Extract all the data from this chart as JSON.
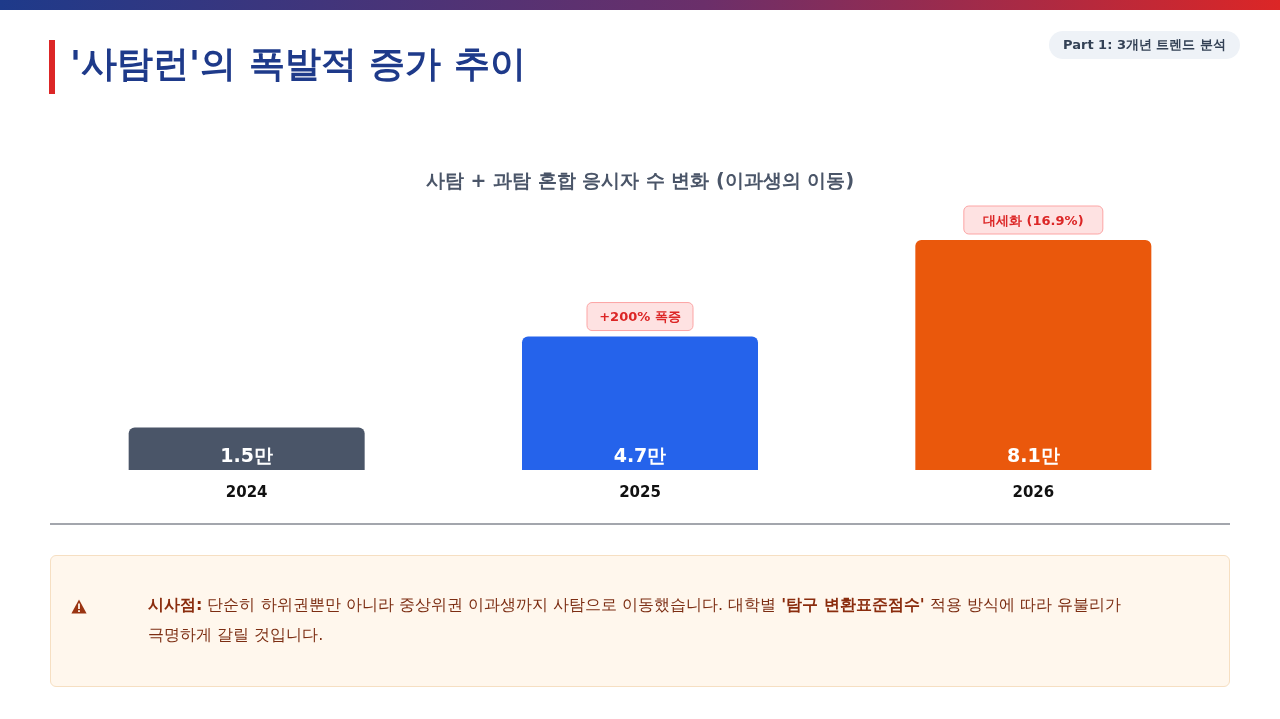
{
  "chart_data": {
    "type": "bar",
    "title": "'사탐런'의 폭발적 증가 추이",
    "subtitle": "사탐 + 과탐 혼합 응시자 수 변화 (이과생의 이동)",
    "categories": [
      "2024",
      "2025",
      "2026"
    ],
    "values": [
      1.5,
      4.7,
      8.1
    ],
    "colors": [
      "#4a5568",
      "#2563eb",
      "#ea580c"
    ],
    "value_labels": [
      "1.5만",
      "4.7만",
      "8.1만"
    ],
    "tick_labels": "x",
    "grid": false,
    "legend": false,
    "annotations": [
      {
        "text": "+200% 폭증",
        "x": "2025",
        "y": 4.7
      },
      {
        "text": "대세화 (16.9%)",
        "x": "2026",
        "y": 8.1
      },
      "Part 1: 3개년 트렌드 분석",
      "시사점: 단순히 하위권뿐만 아니라 중상위권 이과생까지 사탐으로 이동했습니다. 대학별 '탐구 변환표준점수' 적용 방식에 따라 유불리가 극명하게 갈릴 것입니다."
    ]
  }
}
